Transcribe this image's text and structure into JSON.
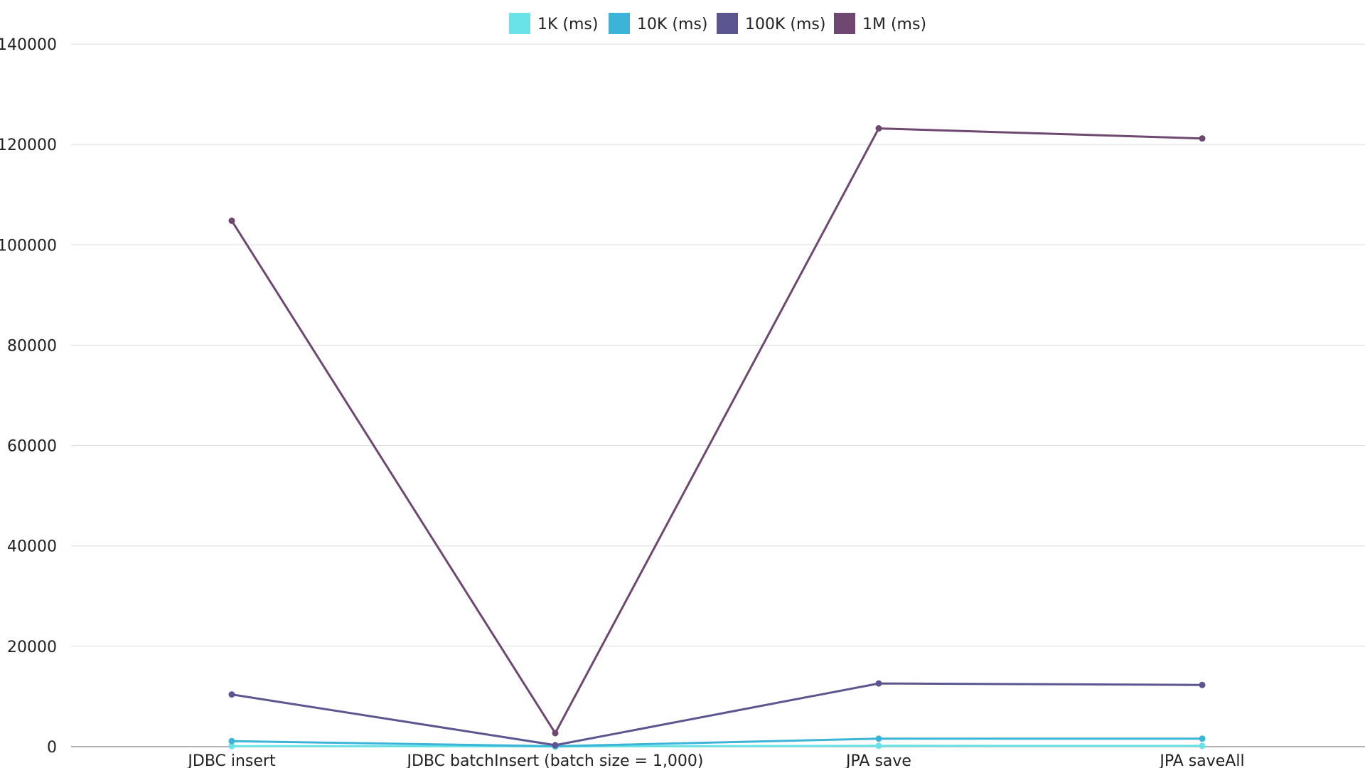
{
  "chart_data": {
    "type": "line",
    "title": "",
    "xlabel": "",
    "ylabel": "",
    "categories": [
      "JDBC insert",
      "JDBC batchInsert (batch size = 1,000)",
      "JPA save",
      "JPA saveAll"
    ],
    "ylim": [
      0,
      140000
    ],
    "yticks": [
      0,
      20000,
      40000,
      60000,
      80000,
      100000,
      120000,
      140000
    ],
    "grid": true,
    "legend_position": "top-center",
    "series": [
      {
        "name": "1K (ms)",
        "color": "#6ae3e8",
        "values": [
          110,
          40,
          170,
          160
        ]
      },
      {
        "name": "10K (ms)",
        "color": "#3cb4d8",
        "values": [
          1100,
          90,
          1600,
          1600
        ]
      },
      {
        "name": "100K (ms)",
        "color": "#5b5690",
        "values": [
          10400,
          300,
          12600,
          12300
        ]
      },
      {
        "name": "1M (ms)",
        "color": "#6e4870",
        "values": [
          104800,
          2700,
          123200,
          121200
        ]
      }
    ]
  }
}
